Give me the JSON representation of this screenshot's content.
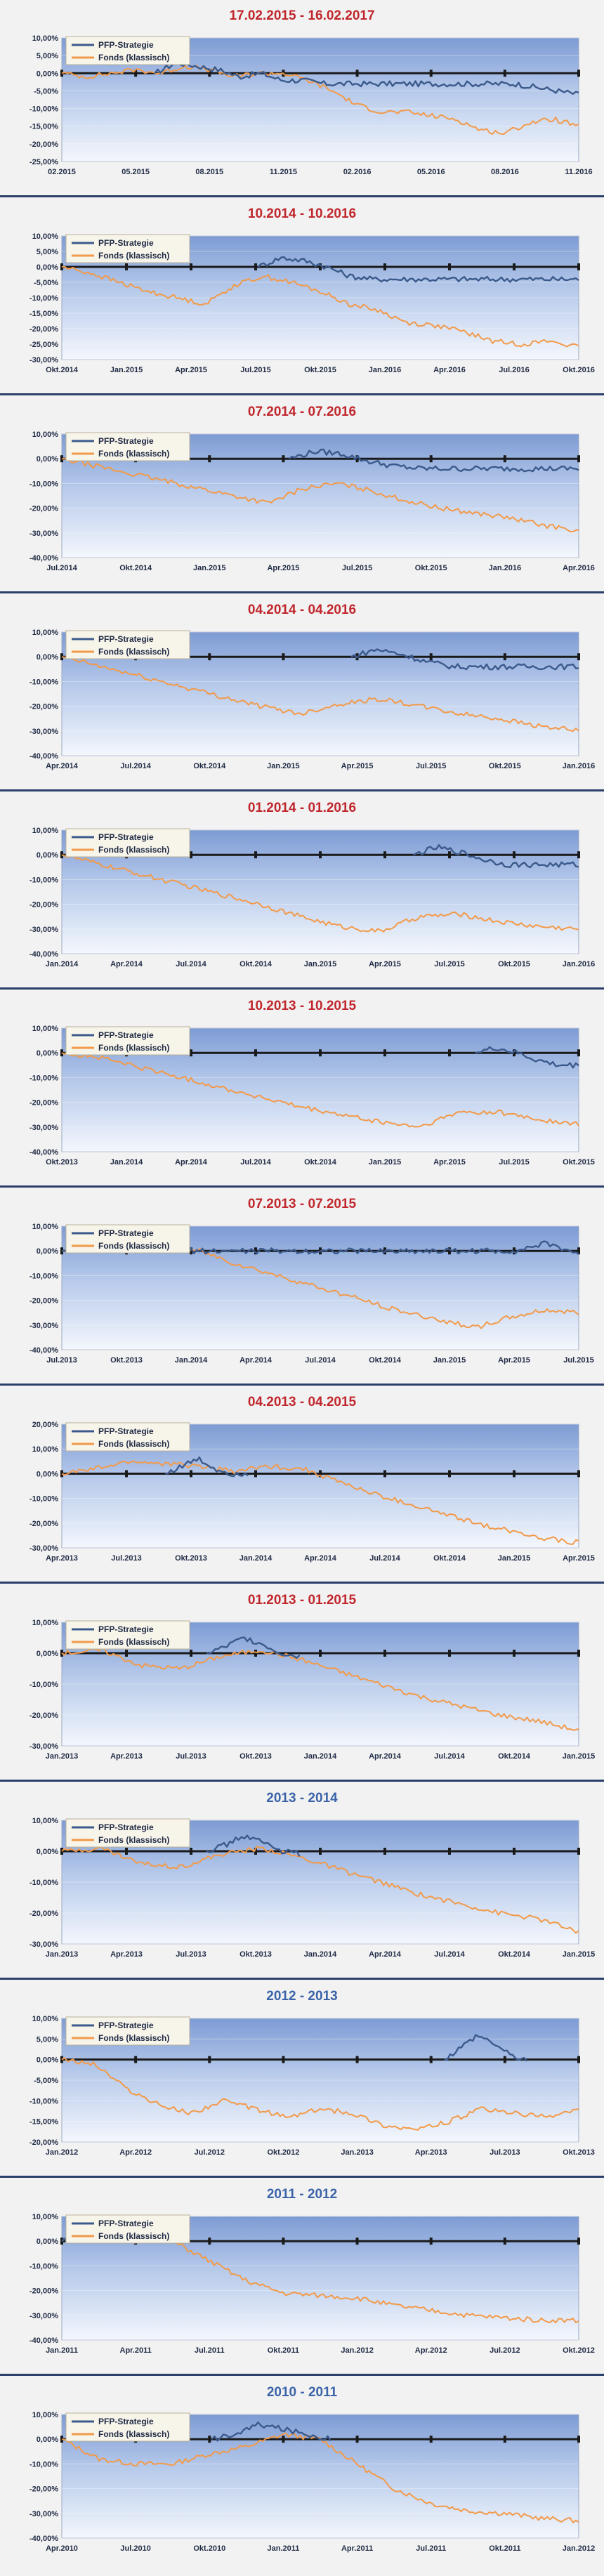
{
  "series_names": [
    "PFP-Strategie",
    "Fonds (klassisch)"
  ],
  "colors": {
    "strategy": "#3b5a8c",
    "fund": "#f29a4a",
    "title_red": "#c0262c",
    "title_blue": "#3a63a8",
    "zero_line": "#1a1a1a"
  },
  "chart_data": [
    {
      "type": "line",
      "title": "17.02.2015 - 16.02.2017",
      "title_color": "red",
      "ylim": [
        -25,
        10
      ],
      "yticks": [
        "10,00%",
        "5,00%",
        "0,00%",
        "-5,00%",
        "-10,00%",
        "-15,00%",
        "-20,00%",
        "-25,00%"
      ],
      "xticks": [
        "02.2015",
        "05.2015",
        "08.2015",
        "11.2015",
        "02.2016",
        "05.2016",
        "08.2016",
        "11.2016"
      ],
      "series": [
        {
          "name": "PFP-Strategie",
          "x_start": 0.18,
          "x_end": 1.0,
          "values": [
            0,
            3,
            2,
            1,
            -1,
            0,
            -2,
            -2,
            -3,
            -3,
            -3,
            -3,
            -3,
            -3,
            -3,
            -3,
            -3,
            -3,
            -4,
            -5,
            -6
          ]
        },
        {
          "name": "Fonds (klassisch)",
          "x_start": 0,
          "x_end": 1.0,
          "values": [
            0,
            -1,
            0,
            1,
            0,
            2,
            1,
            -1,
            0,
            0,
            -2,
            -5,
            -9,
            -11,
            -11,
            -12,
            -13,
            -16,
            -17,
            -14,
            -13,
            -15
          ]
        }
      ]
    },
    {
      "type": "line",
      "title": "10.2014 - 10.2016",
      "title_color": "red",
      "ylim": [
        -30,
        10
      ],
      "yticks": [
        "10,00%",
        "5,00%",
        "0,00%",
        "-5,00%",
        "-10,00%",
        "-15,00%",
        "-20,00%",
        "-25,00%",
        "-30,00%"
      ],
      "xticks": [
        "Okt.2014",
        "Jan.2015",
        "Apr.2015",
        "Jul.2015",
        "Okt.2015",
        "Jan.2016",
        "Apr.2016",
        "Jul.2016",
        "Okt.2016"
      ],
      "series": [
        {
          "name": "PFP-Strategie",
          "x_start": 0.38,
          "x_end": 1.0,
          "values": [
            0,
            3,
            2,
            0,
            -3,
            -4,
            -4,
            -4,
            -4,
            -4,
            -4,
            -4,
            -4,
            -4,
            -4
          ]
        },
        {
          "name": "Fonds (klassisch)",
          "x_start": 0,
          "x_end": 1.0,
          "values": [
            0,
            -2,
            -5,
            -8,
            -10,
            -12,
            -6,
            -3,
            -5,
            -8,
            -12,
            -14,
            -18,
            -19,
            -21,
            -24,
            -25,
            -24,
            -26
          ]
        }
      ]
    },
    {
      "type": "line",
      "title": "07.2014 - 07.2016",
      "title_color": "red",
      "ylim": [
        -40,
        10
      ],
      "yticks": [
        "10,00%",
        "0,00%",
        "-10,00%",
        "-20,00%",
        "-30,00%",
        "-40,00%"
      ],
      "xticks": [
        "Jul.2014",
        "Okt.2014",
        "Jan.2015",
        "Apr.2015",
        "Jul.2015",
        "Okt.2015",
        "Jan.2016",
        "Apr.2016"
      ],
      "series": [
        {
          "name": "PFP-Strategie",
          "x_start": 0.44,
          "x_end": 1.0,
          "values": [
            0,
            3,
            2,
            -1,
            -3,
            -4,
            -4,
            -4,
            -4,
            -4,
            -4,
            -4
          ]
        },
        {
          "name": "Fonds (klassisch)",
          "x_start": 0,
          "x_end": 1.0,
          "values": [
            0,
            -3,
            -6,
            -9,
            -12,
            -15,
            -18,
            -12,
            -10,
            -13,
            -17,
            -20,
            -22,
            -24,
            -27,
            -29
          ]
        }
      ]
    },
    {
      "type": "line",
      "title": "04.2014 - 04.2016",
      "title_color": "red",
      "ylim": [
        -40,
        10
      ],
      "yticks": [
        "10,00%",
        "0,00%",
        "-10,00%",
        "-20,00%",
        "-30,00%",
        "-40,00%"
      ],
      "xticks": [
        "Apr.2014",
        "Jul.2014",
        "Okt.2014",
        "Jan.2015",
        "Apr.2015",
        "Jul.2015",
        "Okt.2015",
        "Jan.2016"
      ],
      "series": [
        {
          "name": "PFP-Strategie",
          "x_start": 0.56,
          "x_end": 1.0,
          "values": [
            0,
            3,
            1,
            -2,
            -4,
            -4,
            -4,
            -4,
            -4,
            -4
          ]
        },
        {
          "name": "Fonds (klassisch)",
          "x_start": 0,
          "x_end": 1.0,
          "values": [
            0,
            -4,
            -8,
            -12,
            -16,
            -20,
            -23,
            -19,
            -17,
            -20,
            -23,
            -25,
            -28,
            -30
          ]
        }
      ]
    },
    {
      "type": "line",
      "title": "01.2014 - 01.2016",
      "title_color": "red",
      "ylim": [
        -40,
        10
      ],
      "yticks": [
        "10,00%",
        "0,00%",
        "-10,00%",
        "-20,00%",
        "-30,00%",
        "-40,00%"
      ],
      "xticks": [
        "Jan.2014",
        "Apr.2014",
        "Jul.2014",
        "Okt.2014",
        "Jan.2015",
        "Apr.2015",
        "Jul.2015",
        "Okt.2015",
        "Jan.2016"
      ],
      "series": [
        {
          "name": "PFP-Strategie",
          "x_start": 0.68,
          "x_end": 1.0,
          "values": [
            0,
            3,
            1,
            -2,
            -4,
            -4,
            -4,
            -4
          ]
        },
        {
          "name": "Fonds (klassisch)",
          "x_start": 0,
          "x_end": 1.0,
          "values": [
            0,
            -4,
            -8,
            -12,
            -16,
            -20,
            -25,
            -29,
            -31,
            -25,
            -24,
            -27,
            -29,
            -30
          ]
        }
      ]
    },
    {
      "type": "line",
      "title": "10.2013 - 10.2015",
      "title_color": "red",
      "ylim": [
        -40,
        10
      ],
      "yticks": [
        "10,00%",
        "0,00%",
        "-10,00%",
        "-20,00%",
        "-30,00%",
        "-40,00%"
      ],
      "xticks": [
        "Okt.2013",
        "Jan.2014",
        "Apr.2014",
        "Jul.2014",
        "Okt.2014",
        "Jan.2015",
        "Apr.2015",
        "Jul.2015",
        "Okt.2015"
      ],
      "series": [
        {
          "name": "PFP-Strategie",
          "x_start": 0.8,
          "x_end": 1.0,
          "values": [
            0,
            2,
            0,
            -3,
            -5,
            -5
          ]
        },
        {
          "name": "Fonds (klassisch)",
          "x_start": 0,
          "x_end": 1.0,
          "values": [
            0,
            -2,
            -6,
            -10,
            -14,
            -18,
            -22,
            -25,
            -28,
            -30,
            -24,
            -24,
            -27,
            -29
          ]
        }
      ]
    },
    {
      "type": "line",
      "title": "07.2013 - 07.2015",
      "title_color": "red",
      "ylim": [
        -40,
        10
      ],
      "yticks": [
        "10,00%",
        "0,00%",
        "-10,00%",
        "-20,00%",
        "-30,00%",
        "-40,00%"
      ],
      "xticks": [
        "Jul.2013",
        "Okt.2013",
        "Jan.2014",
        "Apr.2014",
        "Jul.2014",
        "Okt.2014",
        "Jan.2015",
        "Apr.2015",
        "Jul.2015"
      ],
      "series": [
        {
          "name": "PFP-Strategie",
          "x_start": 0,
          "x_end": 1.0,
          "values": [
            0,
            3,
            4,
            1,
            0,
            0,
            0,
            0,
            0,
            0,
            0,
            0,
            0,
            0,
            0,
            3,
            -1
          ]
        },
        {
          "name": "Fonds (klassisch)",
          "x_start": 0,
          "x_end": 1.0,
          "values": [
            0,
            3,
            2,
            1,
            0,
            -5,
            -9,
            -13,
            -17,
            -21,
            -25,
            -28,
            -31,
            -27,
            -24,
            -25
          ]
        }
      ]
    },
    {
      "type": "line",
      "title": "04.2013 - 04.2015",
      "title_color": "red",
      "ylim": [
        -30,
        20
      ],
      "yticks": [
        "20,00%",
        "10,00%",
        "0,00%",
        "-10,00%",
        "-20,00%",
        "-30,00%"
      ],
      "xticks": [
        "Apr.2013",
        "Jul.2013",
        "Okt.2013",
        "Jan.2014",
        "Apr.2014",
        "Jul.2014",
        "Okt.2014",
        "Jan.2015",
        "Apr.2015"
      ],
      "series": [
        {
          "name": "PFP-Strategie",
          "x_start": 0.2,
          "x_end": 0.36,
          "values": [
            0,
            3,
            6,
            2,
            0,
            0
          ]
        },
        {
          "name": "Fonds (klassisch)",
          "x_start": 0,
          "x_end": 1.0,
          "values": [
            0,
            2,
            5,
            4,
            3,
            1,
            3,
            2,
            -3,
            -8,
            -12,
            -16,
            -20,
            -23,
            -26,
            -28
          ]
        }
      ]
    },
    {
      "type": "line",
      "title": "01.2013 - 01.2015",
      "title_color": "red",
      "ylim": [
        -30,
        10
      ],
      "yticks": [
        "10,00%",
        "0,00%",
        "-10,00%",
        "-20,00%",
        "-30,00%"
      ],
      "xticks": [
        "Jan.2013",
        "Apr.2013",
        "Jul.2013",
        "Okt.2013",
        "Jan.2014",
        "Apr.2014",
        "Jul.2014",
        "Okt.2014",
        "Jan.2015"
      ],
      "series": [
        {
          "name": "PFP-Strategie",
          "x_start": 0.28,
          "x_end": 0.46,
          "values": [
            0,
            2,
            5,
            3,
            0,
            -1
          ]
        },
        {
          "name": "Fonds (klassisch)",
          "x_start": 0,
          "x_end": 1.0,
          "values": [
            0,
            1,
            -4,
            -5,
            -1,
            1,
            -2,
            -6,
            -10,
            -14,
            -17,
            -20,
            -22,
            -25
          ]
        }
      ]
    },
    {
      "type": "line",
      "title": "2013 - 2014",
      "title_color": "blue",
      "ylim": [
        -30,
        10
      ],
      "yticks": [
        "10,00%",
        "0,00%",
        "-10,00%",
        "-20,00%",
        "-30,00%"
      ],
      "xticks": [
        "Jan.2013",
        "Apr.2013",
        "Jul.2013",
        "Okt.2013",
        "Jan.2014",
        "Apr.2014",
        "Jul.2014",
        "Okt.2014",
        "Jan.2015"
      ],
      "series": [
        {
          "name": "PFP-Strategie",
          "x_start": 0.28,
          "x_end": 0.46,
          "values": [
            0,
            2,
            5,
            3,
            0,
            -1
          ]
        },
        {
          "name": "Fonds (klassisch)",
          "x_start": 0,
          "x_end": 1.0,
          "values": [
            0,
            1,
            -4,
            -5,
            -1,
            1,
            -2,
            -6,
            -10,
            -14,
            -17,
            -20,
            -22,
            -26
          ]
        }
      ]
    },
    {
      "type": "line",
      "title": "2012 - 2013",
      "title_color": "blue",
      "ylim": [
        -20,
        10
      ],
      "yticks": [
        "10,00%",
        "5,00%",
        "0,00%",
        "-5,00%",
        "-10,00%",
        "-15,00%",
        "-20,00%"
      ],
      "xticks": [
        "Jan.2012",
        "Apr.2012",
        "Jul.2012",
        "Okt.2012",
        "Jan.2013",
        "Apr.2013",
        "Jul.2013",
        "Okt.2013"
      ],
      "series": [
        {
          "name": "PFP-Strategie",
          "x_start": 0.74,
          "x_end": 0.9,
          "values": [
            0,
            3,
            6,
            4,
            1,
            0
          ]
        },
        {
          "name": "Fonds (klassisch)",
          "x_start": 0,
          "x_end": 1.0,
          "values": [
            0,
            -1,
            -7,
            -11,
            -13,
            -10,
            -12,
            -14,
            -12,
            -13,
            -16,
            -17,
            -15,
            -12,
            -13,
            -14,
            -12
          ]
        }
      ]
    },
    {
      "type": "line",
      "title": "2011 - 2012",
      "title_color": "blue",
      "ylim": [
        -40,
        10
      ],
      "yticks": [
        "10,00%",
        "0,00%",
        "-10,00%",
        "-20,00%",
        "-30,00%",
        "-40,00%"
      ],
      "xticks": [
        "Jan.2011",
        "Apr.2011",
        "Jul.2011",
        "Okt.2011",
        "Jan.2012",
        "Apr.2012",
        "Jul.2012",
        "Okt.2012"
      ],
      "series": [
        {
          "name": "PFP-Strategie",
          "x_start": 0,
          "x_end": 0.04,
          "values": [
            0,
            0
          ]
        },
        {
          "name": "Fonds (klassisch)",
          "x_start": 0,
          "x_end": 1.0,
          "values": [
            0,
            3,
            4,
            0,
            -8,
            -16,
            -21,
            -22,
            -23,
            -26,
            -28,
            -30,
            -31,
            -32,
            -32
          ]
        }
      ]
    },
    {
      "type": "line",
      "title": "2010 - 2011",
      "title_color": "blue",
      "ylim": [
        -40,
        10
      ],
      "yticks": [
        "10,00%",
        "0,00%",
        "-10,00%",
        "-20,00%",
        "-30,00%",
        "-40,00%"
      ],
      "xticks": [
        "Apr.2010",
        "Jul.2010",
        "Okt.2010",
        "Jan.2011",
        "Apr.2011",
        "Jul.2011",
        "Okt.2011",
        "Jan.2012"
      ],
      "series": [
        {
          "name": "PFP-Strategie",
          "x_start": 0.29,
          "x_end": 0.52,
          "values": [
            0,
            2,
            6,
            4,
            2,
            0
          ]
        },
        {
          "name": "Fonds (klassisch)",
          "x_start": 0,
          "x_end": 1.0,
          "values": [
            0,
            -8,
            -10,
            -10,
            -6,
            -3,
            2,
            0,
            -10,
            -20,
            -26,
            -29,
            -30,
            -32,
            -33
          ]
        }
      ]
    }
  ]
}
